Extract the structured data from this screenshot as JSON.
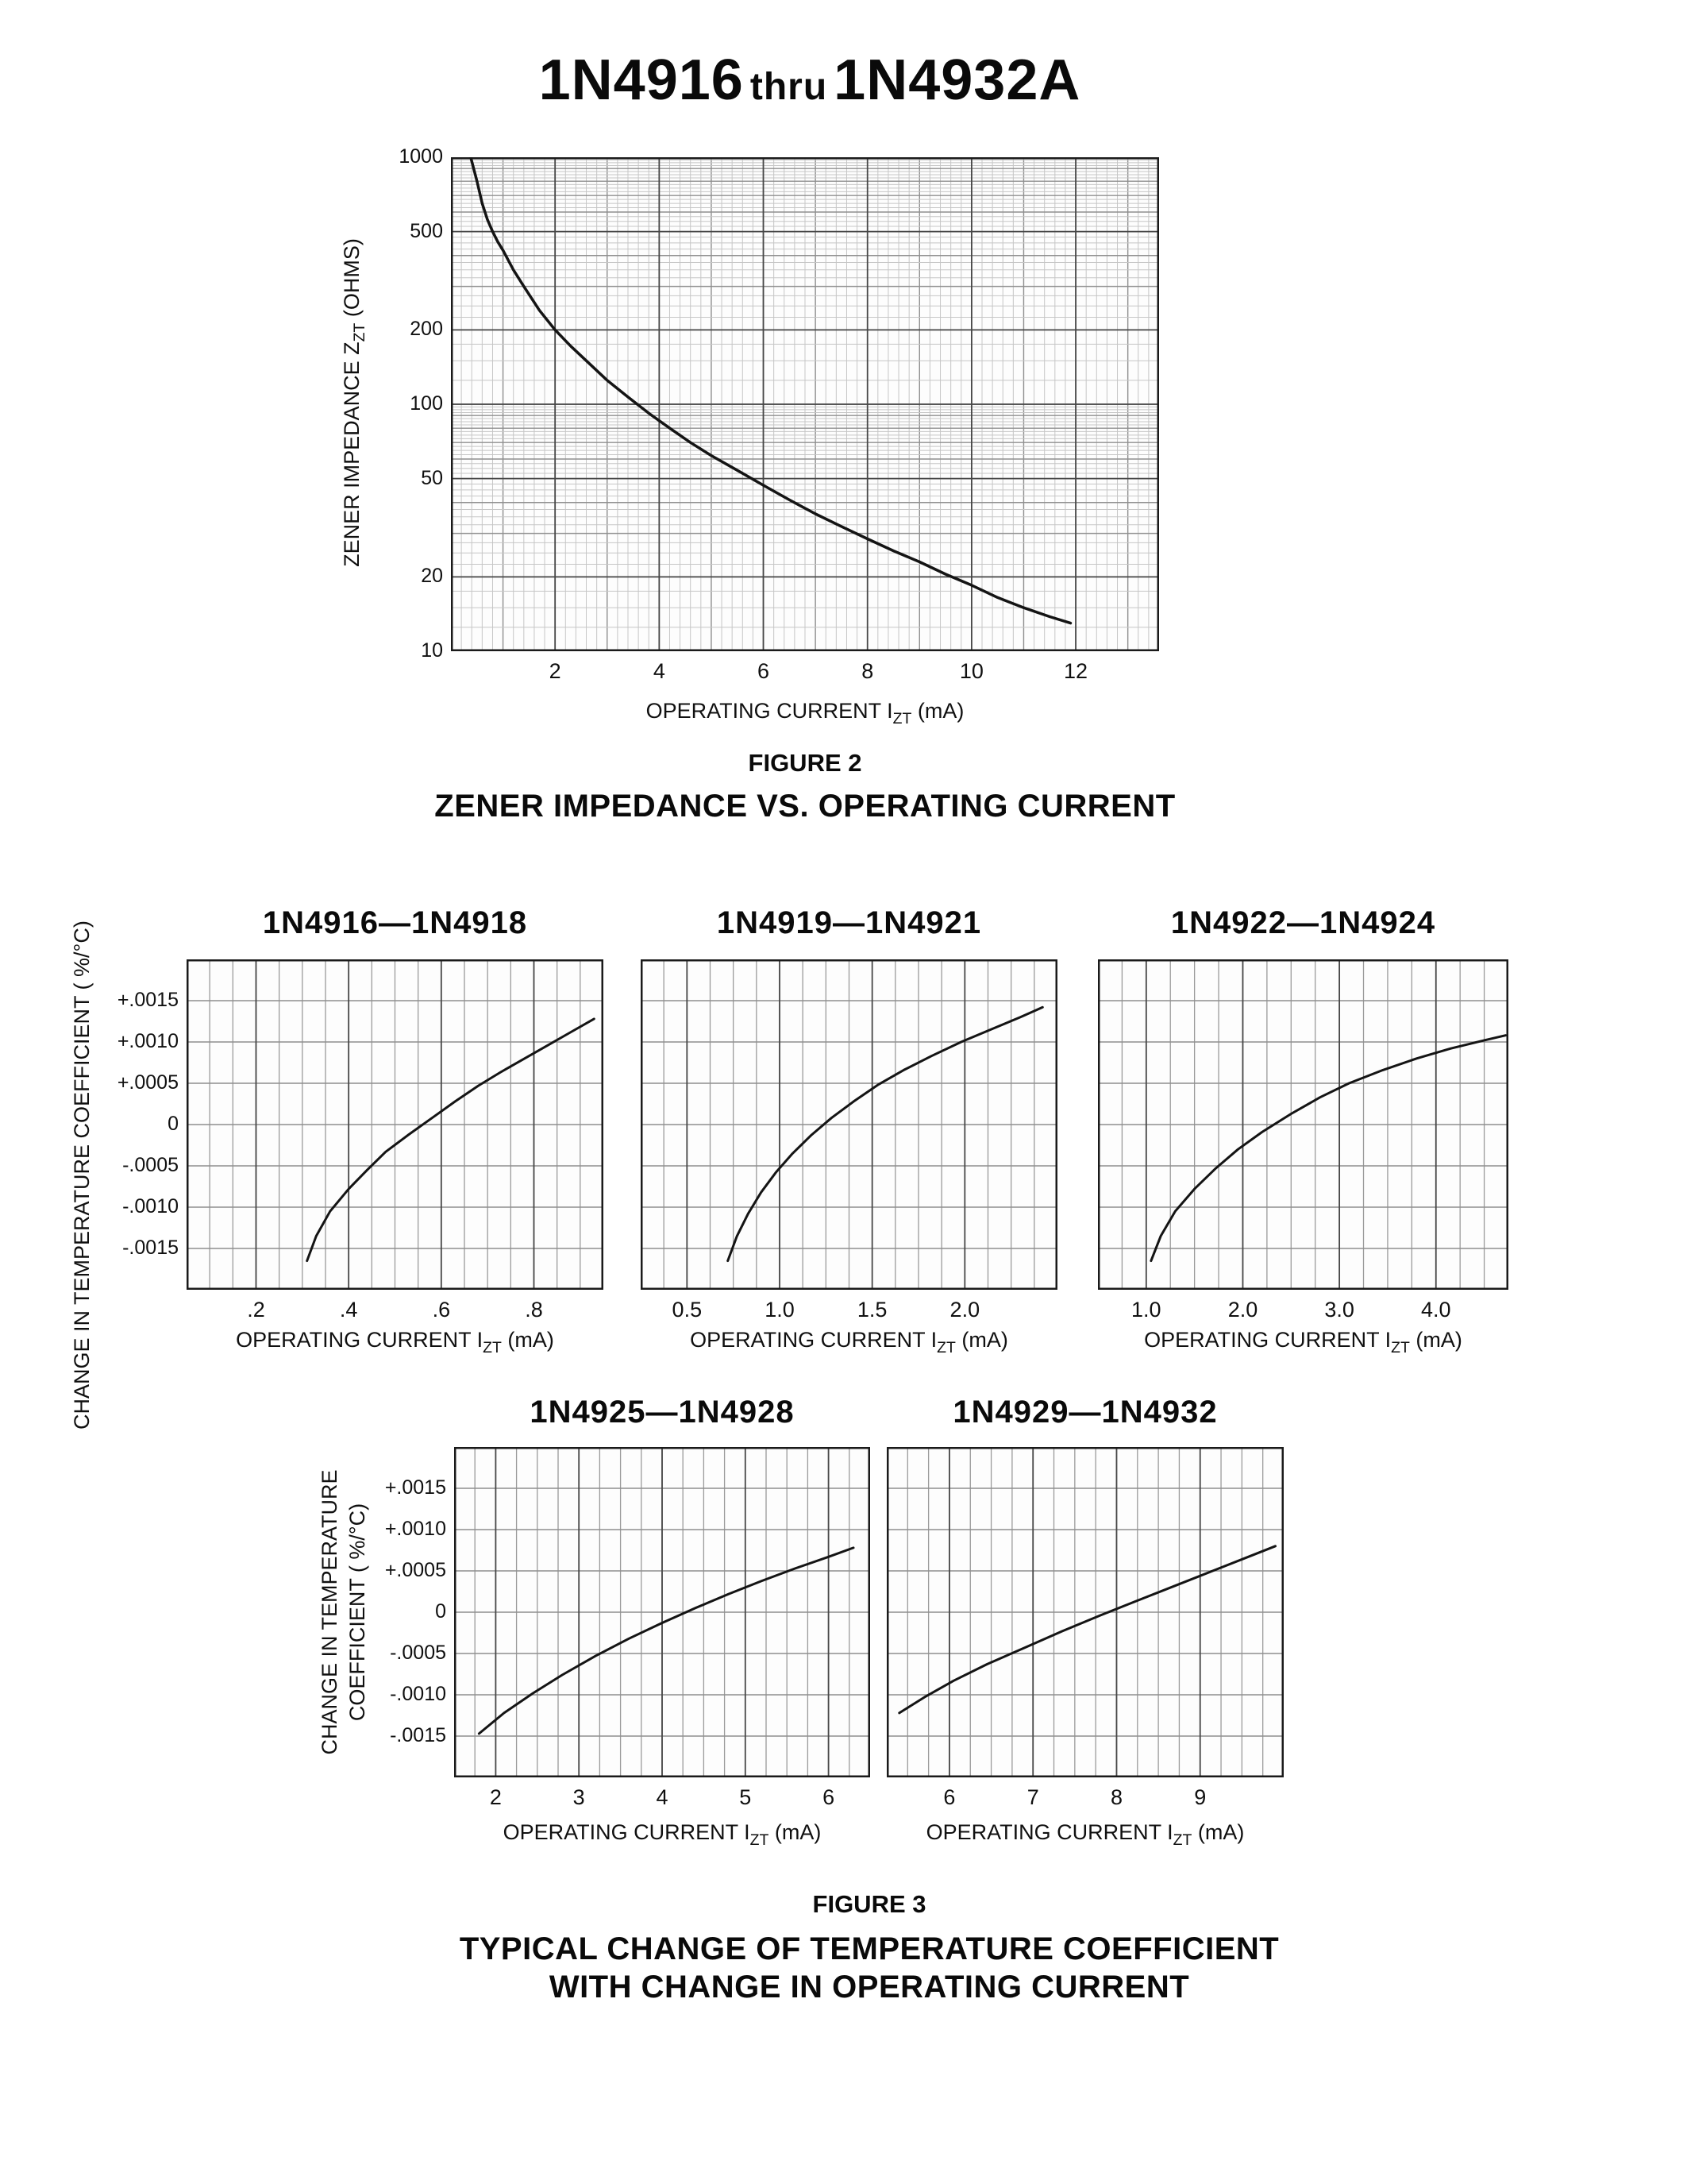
{
  "page": {
    "title": {
      "part1": "1N4916",
      "thru": "thru",
      "part2": "1N4932A"
    }
  },
  "figure2": {
    "caption": "FIGURE 2",
    "xlabel": {
      "prefix": "OPERATING CURRENT I",
      "sub": "ZT",
      "suffix": " (mA)"
    },
    "ylabel": {
      "prefix": "ZENER IMPEDANCE Z",
      "sub": "ZT",
      "suffix": " (OHMS)"
    }
  },
  "figure3": {
    "caption": "FIGURE 3",
    "subcaption_line1": "TYPICAL CHANGE OF TEMPERATURE COEFFICIENT",
    "subcaption_line2": "WITH CHANGE IN OPERATING CURRENT",
    "ylabel_row1": "CHANGE IN TEMPERATURE COEFFICIENT ( %/°C)",
    "ylabel_row2": {
      "line1": "CHANGE IN TEMPERATURE",
      "line2": "COEFFICIENT ( %/°C)"
    },
    "xlabel": {
      "prefix": "OPERATING CURRENT I",
      "sub": "ZT",
      "suffix": " (mA)"
    }
  },
  "chart_data": [
    {
      "type": "line",
      "title": "ZENER IMPEDANCE VS. OPERATING CURRENT",
      "xlabel": "OPERATING CURRENT IZT (mA)",
      "ylabel": "ZENER IMPEDANCE ZZT (OHMS)",
      "xlim": [
        0,
        13.6
      ],
      "ylim": [
        10,
        1000
      ],
      "yscale": "log",
      "grid": "on",
      "xticks": [
        2,
        4,
        6,
        8,
        10,
        12
      ],
      "xtick_labels": [
        "2",
        "4",
        "6",
        "8",
        "10",
        "12"
      ],
      "yticks": [
        1000,
        500,
        200,
        100,
        50,
        20,
        10
      ],
      "ytick_labels": [
        "1000",
        "500",
        "200",
        "100",
        "50",
        "20",
        "10"
      ],
      "x_minor_step": 0.2,
      "x_medium_step": 1,
      "show_ytick_labels": true,
      "curve_width": 3.5,
      "points": [
        [
          0.38,
          1000
        ],
        [
          0.5,
          800
        ],
        [
          0.6,
          650
        ],
        [
          0.7,
          560
        ],
        [
          0.8,
          500
        ],
        [
          0.9,
          455
        ],
        [
          1,
          420
        ],
        [
          1.2,
          350
        ],
        [
          1.4,
          300
        ],
        [
          1.7,
          240
        ],
        [
          2,
          200
        ],
        [
          2.3,
          172
        ],
        [
          2.6,
          150
        ],
        [
          3,
          125
        ],
        [
          3.4,
          107
        ],
        [
          3.8,
          92
        ],
        [
          4.2,
          80
        ],
        [
          4.6,
          70
        ],
        [
          5,
          62
        ],
        [
          5.5,
          54
        ],
        [
          6,
          47
        ],
        [
          6.5,
          41
        ],
        [
          7,
          36
        ],
        [
          7.5,
          32
        ],
        [
          8,
          28.5
        ],
        [
          8.5,
          25.5
        ],
        [
          9,
          23
        ],
        [
          9.5,
          20.5
        ],
        [
          10,
          18.5
        ],
        [
          10.5,
          16.5
        ],
        [
          11,
          15
        ],
        [
          11.5,
          13.8
        ],
        [
          11.9,
          13
        ]
      ]
    },
    {
      "type": "line",
      "title": "1N4916—1N4918",
      "xlabel": "OPERATING CURRENT IZT (mA)",
      "ylabel": "CHANGE IN TEMPERATURE COEFFICIENT ( %/°C)",
      "xlim": [
        0.05,
        0.95
      ],
      "ylim": [
        -0.002,
        0.002
      ],
      "grid": "on",
      "xticks": [
        0.2,
        0.4,
        0.6,
        0.8
      ],
      "xtick_labels": [
        ".2",
        ".4",
        ".6",
        ".8"
      ],
      "yticks": [
        0.0015,
        0.001,
        0.0005,
        0,
        -0.0005,
        -0.001,
        -0.0015
      ],
      "ytick_labels": [
        "+.0015",
        "+.0010",
        "+.0005",
        "0",
        "-.0005",
        "-.0010",
        "-.0015"
      ],
      "x_minor_step": 0.05,
      "y_minor_step": 0.0005,
      "ytick_lines": false,
      "show_ytick_labels": true,
      "curve_width": 3,
      "points": [
        [
          0.31,
          -0.00165
        ],
        [
          0.33,
          -0.00135
        ],
        [
          0.36,
          -0.00105
        ],
        [
          0.4,
          -0.00078
        ],
        [
          0.44,
          -0.00055
        ],
        [
          0.48,
          -0.00033
        ],
        [
          0.53,
          -0.00012
        ],
        [
          0.58,
          8e-05
        ],
        [
          0.63,
          0.00028
        ],
        [
          0.68,
          0.00047
        ],
        [
          0.73,
          0.00064
        ],
        [
          0.78,
          0.0008
        ],
        [
          0.83,
          0.00096
        ],
        [
          0.88,
          0.00112
        ],
        [
          0.93,
          0.00128
        ]
      ]
    },
    {
      "type": "line",
      "title": "1N4919—1N4921",
      "xlabel": "OPERATING CURRENT IZT (mA)",
      "ylabel": "CHANGE IN TEMPERATURE COEFFICIENT ( %/°C)",
      "xlim": [
        0.25,
        2.5
      ],
      "ylim": [
        -0.002,
        0.002
      ],
      "grid": "on",
      "xticks": [
        0.5,
        1.0,
        1.5,
        2.0
      ],
      "xtick_labels": [
        "0.5",
        "1.0",
        "1.5",
        "2.0"
      ],
      "yticks": [
        0.0015,
        0.001,
        0.0005,
        0,
        -0.0005,
        -0.001,
        -0.0015
      ],
      "ytick_labels": [
        "+.0015",
        "+.0010",
        "+.0005",
        "0",
        "-.0005",
        "-.0010",
        "-.0015"
      ],
      "x_minor_step": 0.125,
      "y_minor_step": 0.0005,
      "ytick_lines": false,
      "show_ytick_labels": false,
      "curve_width": 3,
      "points": [
        [
          0.72,
          -0.00165
        ],
        [
          0.77,
          -0.00135
        ],
        [
          0.83,
          -0.00108
        ],
        [
          0.9,
          -0.00082
        ],
        [
          0.98,
          -0.00058
        ],
        [
          1.07,
          -0.00035
        ],
        [
          1.17,
          -0.00013
        ],
        [
          1.28,
          8e-05
        ],
        [
          1.4,
          0.00028
        ],
        [
          1.53,
          0.00048
        ],
        [
          1.67,
          0.00066
        ],
        [
          1.82,
          0.00083
        ],
        [
          1.98,
          0.001
        ],
        [
          2.15,
          0.00116
        ],
        [
          2.3,
          0.0013
        ],
        [
          2.42,
          0.00142
        ]
      ]
    },
    {
      "type": "line",
      "title": "1N4922—1N4924",
      "xlabel": "OPERATING CURRENT IZT (mA)",
      "ylabel": "CHANGE IN TEMPERATURE COEFFICIENT ( %/°C)",
      "xlim": [
        0.5,
        4.75
      ],
      "ylim": [
        -0.002,
        0.002
      ],
      "grid": "on",
      "xticks": [
        1.0,
        2.0,
        3.0,
        4.0
      ],
      "xtick_labels": [
        "1.0",
        "2.0",
        "3.0",
        "4.0"
      ],
      "yticks": [
        0.0015,
        0.001,
        0.0005,
        0,
        -0.0005,
        -0.001,
        -0.0015
      ],
      "ytick_labels": [
        "+.0015",
        "+.0010",
        "+.0005",
        "0",
        "-.0005",
        "-.0010",
        "-.0015"
      ],
      "x_minor_step": 0.25,
      "y_minor_step": 0.0005,
      "ytick_lines": false,
      "show_ytick_labels": false,
      "curve_width": 3,
      "points": [
        [
          1.05,
          -0.00165
        ],
        [
          1.15,
          -0.00135
        ],
        [
          1.3,
          -0.00105
        ],
        [
          1.5,
          -0.00078
        ],
        [
          1.72,
          -0.00053
        ],
        [
          1.95,
          -0.0003
        ],
        [
          2.2,
          -9e-05
        ],
        [
          2.5,
          0.00013
        ],
        [
          2.8,
          0.00033
        ],
        [
          3.1,
          0.0005
        ],
        [
          3.45,
          0.00066
        ],
        [
          3.8,
          0.0008
        ],
        [
          4.15,
          0.00092
        ],
        [
          4.5,
          0.00102
        ],
        [
          4.72,
          0.00108
        ]
      ]
    },
    {
      "type": "line",
      "title": "1N4925—1N4928",
      "xlabel": "OPERATING CURRENT IZT (mA)",
      "ylabel": "CHANGE IN TEMPERATURE COEFFICIENT ( %/°C)",
      "xlim": [
        1.5,
        6.5
      ],
      "ylim": [
        -0.002,
        0.002
      ],
      "grid": "on",
      "xticks": [
        2,
        3,
        4,
        5,
        6
      ],
      "xtick_labels": [
        "2",
        "3",
        "4",
        "5",
        "6"
      ],
      "yticks": [
        0.0015,
        0.001,
        0.0005,
        0,
        -0.0005,
        -0.001,
        -0.0015
      ],
      "ytick_labels": [
        "+.0015",
        "+.0010",
        "+.0005",
        "0",
        "-.0005",
        "-.0010",
        "-.0015"
      ],
      "x_minor_step": 0.25,
      "y_minor_step": 0.0005,
      "ytick_lines": false,
      "show_ytick_labels": true,
      "curve_width": 3,
      "points": [
        [
          1.8,
          -0.00147
        ],
        [
          2.1,
          -0.00122
        ],
        [
          2.45,
          -0.00098
        ],
        [
          2.8,
          -0.00076
        ],
        [
          3.2,
          -0.00053
        ],
        [
          3.6,
          -0.00032
        ],
        [
          4,
          -0.00013
        ],
        [
          4.4,
          5e-05
        ],
        [
          4.8,
          0.00022
        ],
        [
          5.2,
          0.00038
        ],
        [
          5.6,
          0.00053
        ],
        [
          6,
          0.00067
        ],
        [
          6.3,
          0.00078
        ]
      ]
    },
    {
      "type": "line",
      "title": "1N4929—1N4932",
      "xlabel": "OPERATING CURRENT IZT (mA)",
      "ylabel": "CHANGE IN TEMPERATURE COEFFICIENT ( %/°C)",
      "xlim": [
        5.25,
        10
      ],
      "ylim": [
        -0.002,
        0.002
      ],
      "grid": "on",
      "xticks": [
        6,
        7,
        8,
        9
      ],
      "xtick_labels": [
        "6",
        "7",
        "8",
        "9"
      ],
      "yticks": [
        0.0015,
        0.001,
        0.0005,
        0,
        -0.0005,
        -0.001,
        -0.0015
      ],
      "ytick_labels": [
        "+.0015",
        "+.0010",
        "+.0005",
        "0",
        "-.0005",
        "-.0010",
        "-.0015"
      ],
      "x_minor_step": 0.25,
      "y_minor_step": 0.0005,
      "ytick_lines": false,
      "show_ytick_labels": false,
      "curve_width": 3,
      "points": [
        [
          5.4,
          -0.00122
        ],
        [
          5.7,
          -0.00103
        ],
        [
          6.05,
          -0.00083
        ],
        [
          6.45,
          -0.00063
        ],
        [
          6.9,
          -0.00043
        ],
        [
          7.35,
          -0.00023
        ],
        [
          7.8,
          -4e-05
        ],
        [
          8.25,
          0.00014
        ],
        [
          8.7,
          0.00032
        ],
        [
          9.15,
          0.0005
        ],
        [
          9.6,
          0.00068
        ],
        [
          9.9,
          0.0008
        ]
      ]
    }
  ]
}
